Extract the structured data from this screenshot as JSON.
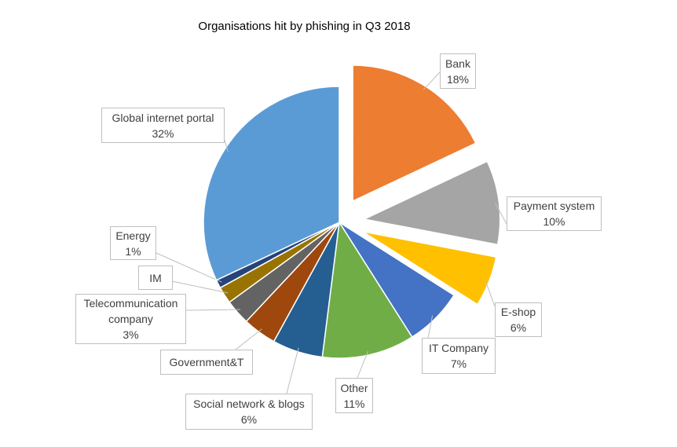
{
  "chart_data": {
    "type": "pie",
    "title": "Organisations hit by phishing in Q3 2018",
    "categories": [
      "Bank",
      "Payment system",
      "E-shop",
      "IT Company",
      "Other",
      "Social network & blogs",
      "Government&T",
      "Telecommunication company",
      "IM",
      "Energy",
      "Global internet portal"
    ],
    "values": [
      18,
      10,
      6,
      7,
      11,
      6,
      4,
      3,
      2,
      1,
      32
    ],
    "value_labels": [
      "18%",
      "10%",
      "6%",
      "7%",
      "11%",
      "6%",
      null,
      "3%",
      null,
      "1%",
      "32%"
    ],
    "colors": [
      "#ED7D31",
      "#A5A5A5",
      "#FFC000",
      "#4472C4",
      "#70AD47",
      "#255E91",
      "#9E480E",
      "#636363",
      "#997300",
      "#264478",
      "#5B9BD5"
    ],
    "exploded": [
      true,
      true,
      true,
      false,
      false,
      false,
      false,
      false,
      false,
      false,
      false
    ]
  }
}
